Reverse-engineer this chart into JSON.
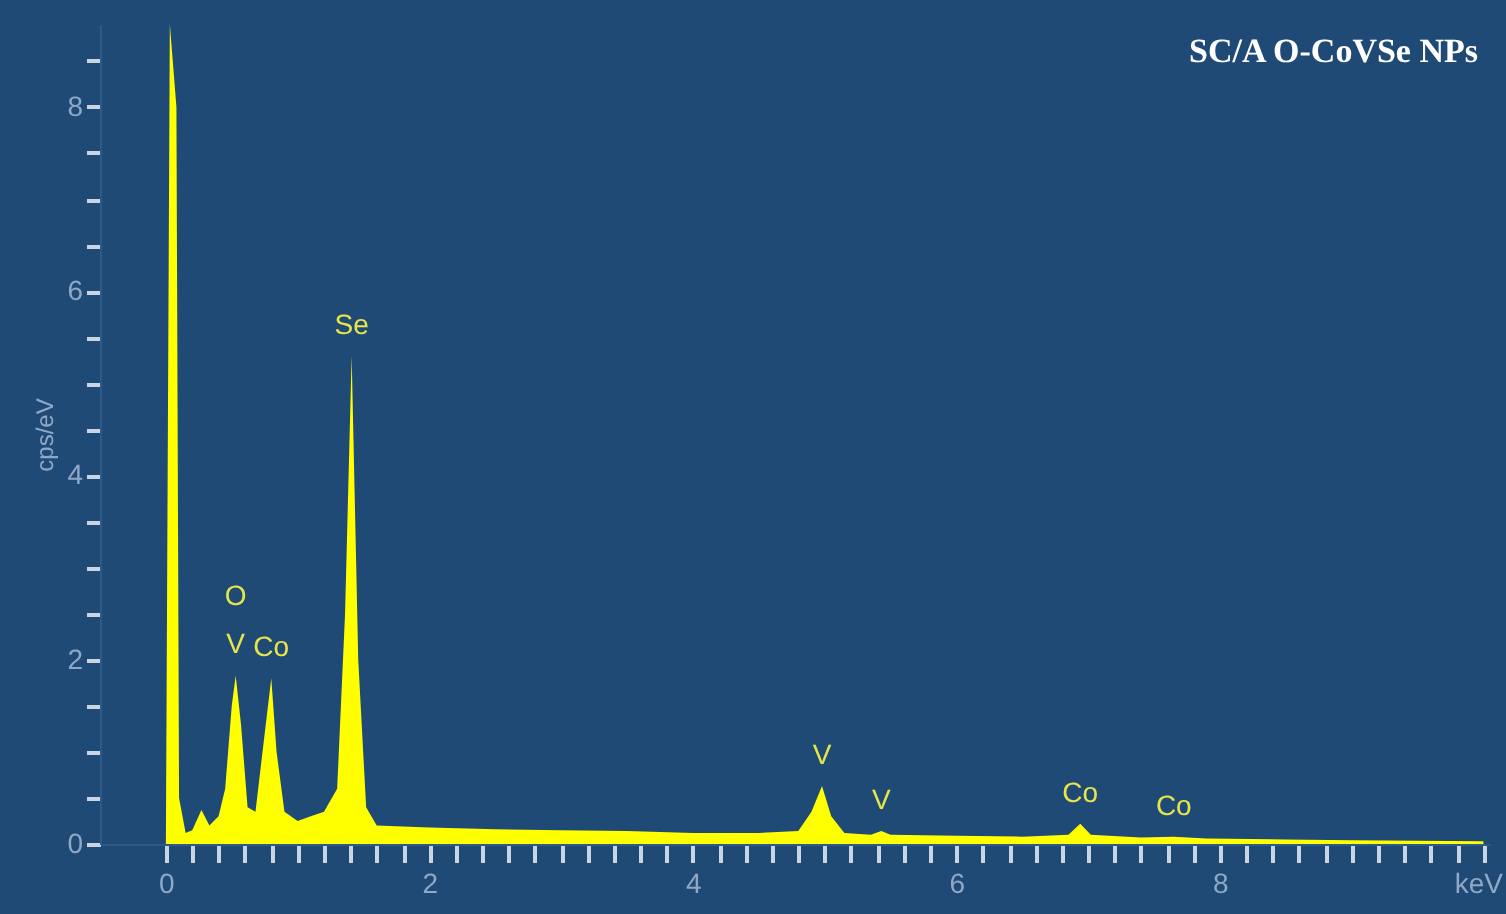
{
  "chart_data": {
    "type": "area",
    "title": "SC/A O-CoVSe NPs",
    "xlabel": "keV",
    "ylabel": "cps/eV",
    "x": [
      0,
      0.03,
      0.08,
      0.1,
      0.15,
      0.2,
      0.27,
      0.33,
      0.4,
      0.45,
      0.5,
      0.53,
      0.57,
      0.62,
      0.68,
      0.75,
      0.8,
      0.84,
      0.9,
      1.0,
      1.1,
      1.2,
      1.3,
      1.36,
      1.41,
      1.46,
      1.52,
      1.6,
      2,
      2.5,
      3,
      3.5,
      4,
      4.5,
      4.8,
      4.9,
      4.98,
      5.05,
      5.15,
      5.35,
      5.43,
      5.5,
      6,
      6.5,
      6.85,
      6.94,
      7.02,
      7.4,
      7.65,
      7.9,
      8.5,
      9,
      10
    ],
    "series": [
      {
        "color": "#ffff00",
        "values": [
          0,
          8.9,
          8.0,
          0.5,
          0.12,
          0.15,
          0.37,
          0.2,
          0.3,
          0.6,
          1.5,
          1.83,
          1.3,
          0.4,
          0.35,
          1.2,
          1.8,
          1.0,
          0.35,
          0.25,
          0.3,
          0.35,
          0.6,
          2.5,
          5.3,
          2.0,
          0.4,
          0.2,
          0.18,
          0.16,
          0.15,
          0.14,
          0.12,
          0.12,
          0.14,
          0.35,
          0.63,
          0.3,
          0.12,
          0.1,
          0.14,
          0.1,
          0.09,
          0.08,
          0.1,
          0.22,
          0.1,
          0.07,
          0.08,
          0.06,
          0.05,
          0.04,
          0.03
        ]
      }
    ],
    "xlim": [
      -0.5,
      10.05
    ],
    "ylim": [
      0,
      8.9
    ],
    "xticks": [
      0,
      {
        "value": 0.2,
        "label": null
      },
      {
        "value": 0.4,
        "label": null
      },
      {
        "value": 0.6,
        "label": null
      },
      {
        "value": 0.8,
        "label": null
      },
      {
        "value": 1,
        "label": null
      },
      {
        "value": 1.2,
        "label": null
      },
      {
        "value": 1.4,
        "label": null
      },
      {
        "value": 1.6,
        "label": null
      },
      {
        "value": 1.8,
        "label": null
      },
      2,
      {
        "value": 2.2,
        "label": null
      },
      {
        "value": 2.4,
        "label": null
      },
      {
        "value": 2.6,
        "label": null
      },
      {
        "value": 2.8,
        "label": null
      },
      {
        "value": 3,
        "label": null
      },
      {
        "value": 3.2,
        "label": null
      },
      {
        "value": 3.4,
        "label": null
      },
      {
        "value": 3.6,
        "label": null
      },
      {
        "value": 3.8,
        "label": null
      },
      4,
      {
        "value": 4.2,
        "label": null
      },
      {
        "value": 4.4,
        "label": null
      },
      {
        "value": 4.6,
        "label": null
      },
      {
        "value": 4.8,
        "label": null
      },
      {
        "value": 5,
        "label": null
      },
      {
        "value": 5.2,
        "label": null
      },
      {
        "value": 5.4,
        "label": null
      },
      {
        "value": 5.6,
        "label": null
      },
      {
        "value": 5.8,
        "label": null
      },
      6,
      {
        "value": 6.2,
        "label": null
      },
      {
        "value": 6.4,
        "label": null
      },
      {
        "value": 6.6,
        "label": null
      },
      {
        "value": 6.8,
        "label": null
      },
      {
        "value": 7,
        "label": null
      },
      {
        "value": 7.2,
        "label": null
      },
      {
        "value": 7.4,
        "label": null
      },
      {
        "value": 7.6,
        "label": null
      },
      {
        "value": 7.8,
        "label": null
      },
      8,
      {
        "value": 8.2,
        "label": null
      },
      {
        "value": 8.4,
        "label": null
      },
      {
        "value": 8.6,
        "label": null
      },
      {
        "value": 8.8,
        "label": null
      },
      {
        "value": 9,
        "label": null
      },
      {
        "value": 9.2,
        "label": null
      },
      {
        "value": 9.4,
        "label": null
      },
      {
        "value": 9.6,
        "label": null
      },
      {
        "value": 9.8,
        "label": null
      },
      {
        "value": 10,
        "label": null
      }
    ],
    "yticks": [
      0,
      {
        "value": 0.5,
        "label": null
      },
      {
        "value": 1,
        "label": null
      },
      {
        "value": 1.5,
        "label": null
      },
      2,
      {
        "value": 2.5,
        "label": null
      },
      {
        "value": 3,
        "label": null
      },
      {
        "value": 3.5,
        "label": null
      },
      4,
      {
        "value": 4.5,
        "label": null
      },
      {
        "value": 5,
        "label": null
      },
      {
        "value": 5.5,
        "label": null
      },
      6,
      {
        "value": 6.5,
        "label": null
      },
      {
        "value": 7,
        "label": null
      },
      {
        "value": 7.5,
        "label": null
      },
      8,
      {
        "value": 8.5,
        "label": null
      }
    ],
    "grid": false,
    "annotations": [
      {
        "text": "V",
        "x": 0.53,
        "y": 1.83
      },
      {
        "text": "O",
        "x": 0.53,
        "y": 1.83
      },
      {
        "text": "Co",
        "x": 0.8,
        "y": 1.8
      },
      {
        "text": "Se",
        "x": 1.41,
        "y": 5.3
      },
      {
        "text": "V",
        "x": 4.98,
        "y": 0.63
      },
      {
        "text": "V",
        "x": 5.43,
        "y": 0.14
      },
      {
        "text": "Co",
        "x": 6.94,
        "y": 0.22
      },
      {
        "text": "Co",
        "x": 7.65,
        "y": 0.08
      }
    ]
  }
}
